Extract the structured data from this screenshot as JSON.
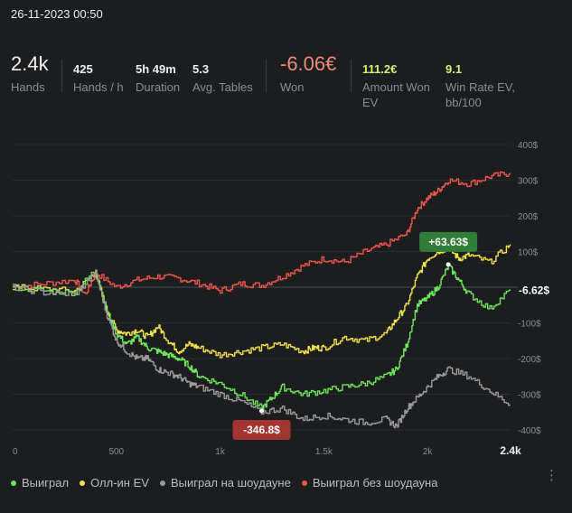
{
  "header": {
    "date": "26-11-2023 00:50"
  },
  "stats": [
    {
      "value": "2.4k",
      "label": "Hands",
      "big": true
    },
    {
      "value": "425",
      "label": "Hands / h"
    },
    {
      "value": "5h 49m",
      "label": "Duration"
    },
    {
      "value": "5.3",
      "label": "Avg. Tables"
    },
    {
      "value": "-6.06€",
      "label": "Won",
      "big": true,
      "color": "#f08a7e"
    },
    {
      "value": "111.2€",
      "label": "Amount Won EV",
      "color": "#d9ef74"
    },
    {
      "value": "9.1",
      "label": "Win Rate EV, bb/100",
      "color": "#d9ef74"
    }
  ],
  "legend": [
    {
      "label": "Выиграл",
      "color": "#6ee35b"
    },
    {
      "label": "Олл-ин EV",
      "color": "#ede24a"
    },
    {
      "label": "Выиграл на шоудауне",
      "color": "#9a9a9a"
    },
    {
      "label": "Выиграл без шоудауна",
      "color": "#f0564f"
    }
  ],
  "chart_data": {
    "type": "line",
    "xlim": [
      0,
      2400
    ],
    "ylim": [
      -400,
      400
    ],
    "x_ticks": [
      "0",
      "500",
      "1k",
      "1.5k",
      "2k",
      "2.4k"
    ],
    "x_tick_values": [
      0,
      500,
      1000,
      1500,
      2000,
      2400
    ],
    "y_ticks": [
      "400$",
      "300$",
      "200$",
      "100$",
      "-100$",
      "-200$",
      "-300$",
      "-400$"
    ],
    "y_tick_values": [
      400,
      300,
      200,
      100,
      -100,
      -200,
      -300,
      -400
    ],
    "grid": true,
    "annotations": [
      {
        "label": "+63.63$",
        "x": 2100,
        "y": 63.63,
        "color": "#2f7d38"
      },
      {
        "label": "-346.8$",
        "x": 1200,
        "y": -346.8,
        "color": "#a33632"
      },
      {
        "label": "-6.62$",
        "x": 2400,
        "y": -6.62
      }
    ],
    "series": [
      {
        "name": "Выиграл без шоудауна",
        "color": "#f0564f",
        "points": [
          [
            0,
            0
          ],
          [
            150,
            10
          ],
          [
            300,
            20
          ],
          [
            350,
            -20
          ],
          [
            400,
            40
          ],
          [
            500,
            0
          ],
          [
            600,
            20
          ],
          [
            700,
            30
          ],
          [
            800,
            25
          ],
          [
            900,
            10
          ],
          [
            1000,
            -10
          ],
          [
            1100,
            10
          ],
          [
            1200,
            5
          ],
          [
            1300,
            30
          ],
          [
            1400,
            60
          ],
          [
            1500,
            80
          ],
          [
            1600,
            70
          ],
          [
            1700,
            100
          ],
          [
            1800,
            120
          ],
          [
            1900,
            150
          ],
          [
            1950,
            220
          ],
          [
            2000,
            250
          ],
          [
            2050,
            270
          ],
          [
            2100,
            300
          ],
          [
            2200,
            290
          ],
          [
            2300,
            310
          ],
          [
            2400,
            320
          ]
        ]
      },
      {
        "name": "Олл-ин EV",
        "color": "#ede24a",
        "points": [
          [
            0,
            0
          ],
          [
            150,
            -5
          ],
          [
            300,
            -10
          ],
          [
            400,
            40
          ],
          [
            450,
            -60
          ],
          [
            500,
            -120
          ],
          [
            550,
            -130
          ],
          [
            600,
            -120
          ],
          [
            650,
            -140
          ],
          [
            700,
            -110
          ],
          [
            750,
            -150
          ],
          [
            800,
            -180
          ],
          [
            850,
            -160
          ],
          [
            900,
            -170
          ],
          [
            1000,
            -190
          ],
          [
            1100,
            -180
          ],
          [
            1200,
            -170
          ],
          [
            1300,
            -160
          ],
          [
            1400,
            -180
          ],
          [
            1450,
            -170
          ],
          [
            1500,
            -170
          ],
          [
            1600,
            -140
          ],
          [
            1700,
            -150
          ],
          [
            1800,
            -130
          ],
          [
            1850,
            -90
          ],
          [
            1900,
            -50
          ],
          [
            1950,
            30
          ],
          [
            2000,
            80
          ],
          [
            2050,
            100
          ],
          [
            2100,
            110
          ],
          [
            2150,
            80
          ],
          [
            2200,
            90
          ],
          [
            2300,
            70
          ],
          [
            2400,
            120
          ]
        ]
      },
      {
        "name": "Выиграл",
        "color": "#6ee35b",
        "points": [
          [
            0,
            0
          ],
          [
            150,
            -10
          ],
          [
            300,
            -15
          ],
          [
            400,
            50
          ],
          [
            450,
            -60
          ],
          [
            500,
            -130
          ],
          [
            550,
            -160
          ],
          [
            600,
            -140
          ],
          [
            650,
            -170
          ],
          [
            700,
            -180
          ],
          [
            750,
            -190
          ],
          [
            800,
            -200
          ],
          [
            850,
            -220
          ],
          [
            900,
            -250
          ],
          [
            1000,
            -270
          ],
          [
            1100,
            -300
          ],
          [
            1200,
            -340
          ],
          [
            1250,
            -310
          ],
          [
            1300,
            -280
          ],
          [
            1400,
            -300
          ],
          [
            1500,
            -290
          ],
          [
            1600,
            -280
          ],
          [
            1700,
            -270
          ],
          [
            1800,
            -250
          ],
          [
            1850,
            -230
          ],
          [
            1900,
            -160
          ],
          [
            1950,
            -50
          ],
          [
            2000,
            -30
          ],
          [
            2050,
            0
          ],
          [
            2100,
            60
          ],
          [
            2150,
            20
          ],
          [
            2200,
            -20
          ],
          [
            2300,
            -60
          ],
          [
            2400,
            -6.62
          ]
        ]
      },
      {
        "name": "Выиграл на шоудауне",
        "color": "#9a9a9a",
        "points": [
          [
            0,
            0
          ],
          [
            150,
            -15
          ],
          [
            300,
            -20
          ],
          [
            400,
            40
          ],
          [
            450,
            -70
          ],
          [
            500,
            -150
          ],
          [
            550,
            -180
          ],
          [
            600,
            -200
          ],
          [
            650,
            -200
          ],
          [
            700,
            -230
          ],
          [
            750,
            -240
          ],
          [
            800,
            -250
          ],
          [
            850,
            -270
          ],
          [
            900,
            -280
          ],
          [
            1000,
            -300
          ],
          [
            1100,
            -320
          ],
          [
            1200,
            -350
          ],
          [
            1300,
            -340
          ],
          [
            1400,
            -370
          ],
          [
            1500,
            -360
          ],
          [
            1600,
            -370
          ],
          [
            1700,
            -380
          ],
          [
            1800,
            -370
          ],
          [
            1850,
            -390
          ],
          [
            1900,
            -340
          ],
          [
            1950,
            -310
          ],
          [
            2000,
            -280
          ],
          [
            2050,
            -250
          ],
          [
            2100,
            -230
          ],
          [
            2200,
            -250
          ],
          [
            2300,
            -290
          ],
          [
            2400,
            -330
          ]
        ]
      }
    ]
  }
}
